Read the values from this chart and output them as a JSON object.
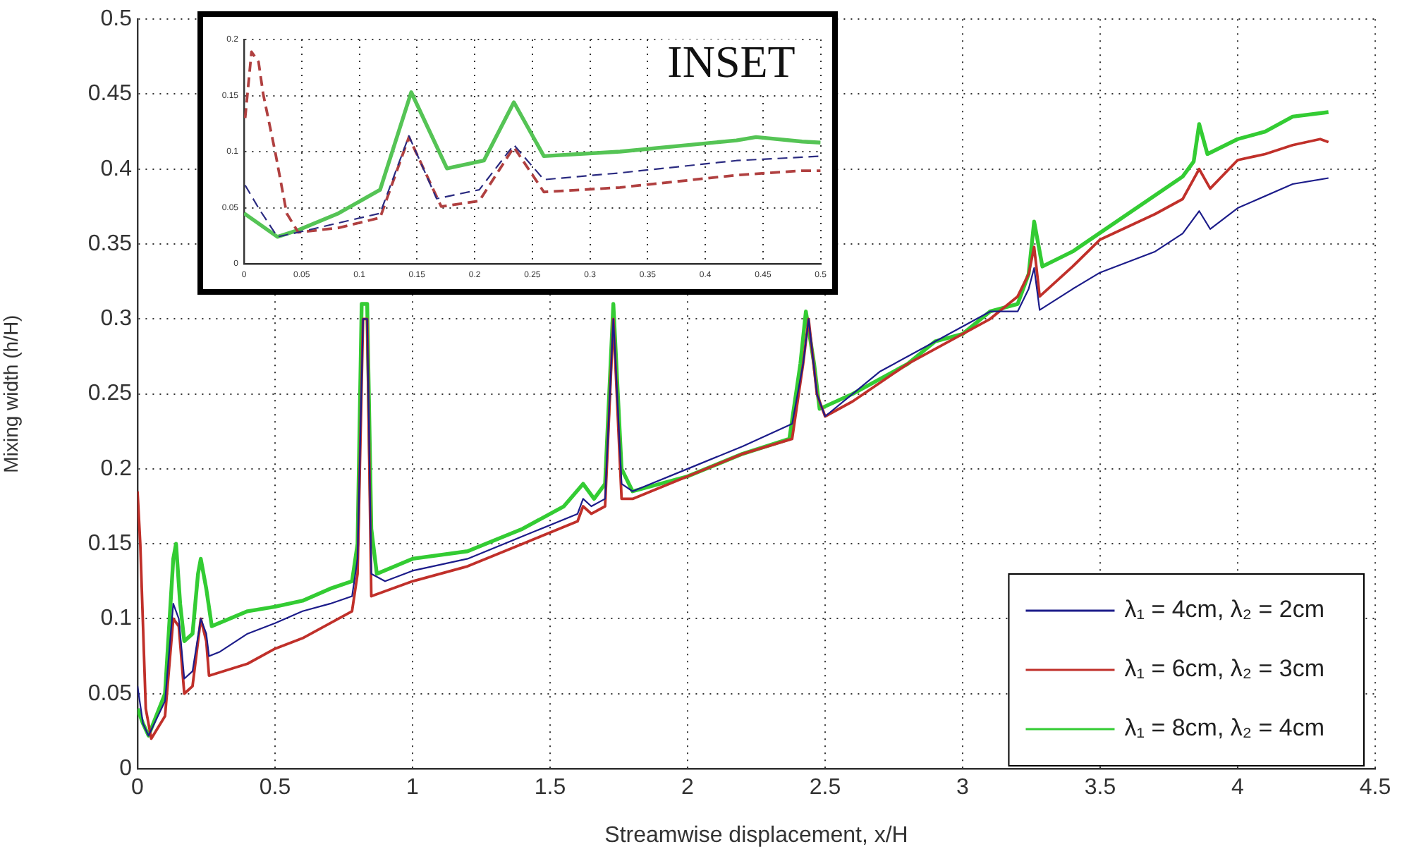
{
  "chart_data": [
    {
      "type": "line",
      "xlabel": "Streamwise displacement, x/H",
      "ylabel": "Mixing width (h/H)",
      "xlim": [
        0,
        4.5
      ],
      "xticks": [
        0,
        0.5,
        1,
        1.5,
        2,
        2.5,
        3,
        3.5,
        4,
        4.5
      ],
      "ylim": [
        0,
        0.5
      ],
      "yticks": [
        0,
        0.05,
        0.1,
        0.15,
        0.2,
        0.25,
        0.3,
        0.35,
        0.4,
        0.45,
        0.5
      ],
      "grid": true,
      "legend": "bottom right",
      "series": [
        {
          "name": "λ₁ = 4cm, λ₂ = 2cm",
          "color": "#1c1c8a",
          "x": [
            0,
            0.02,
            0.04,
            0.1,
            0.13,
            0.15,
            0.17,
            0.2,
            0.23,
            0.25,
            0.26,
            0.3,
            0.4,
            0.5,
            0.6,
            0.7,
            0.78,
            0.8,
            0.82,
            0.835,
            0.85,
            0.9,
            1.0,
            1.2,
            1.4,
            1.6,
            1.62,
            1.65,
            1.7,
            1.73,
            1.76,
            1.8,
            2.0,
            2.2,
            2.38,
            2.42,
            2.44,
            2.47,
            2.5,
            2.6,
            2.7,
            2.8,
            2.9,
            3.0,
            3.1,
            3.2,
            3.24,
            3.26,
            3.28,
            3.4,
            3.5,
            3.7,
            3.8,
            3.86,
            3.9,
            4.0,
            4.2,
            4.33
          ],
          "values": [
            0.055,
            0.03,
            0.022,
            0.045,
            0.11,
            0.1,
            0.06,
            0.065,
            0.1,
            0.09,
            0.075,
            0.078,
            0.09,
            0.097,
            0.105,
            0.11,
            0.115,
            0.14,
            0.3,
            0.3,
            0.13,
            0.125,
            0.132,
            0.14,
            0.155,
            0.17,
            0.18,
            0.175,
            0.18,
            0.3,
            0.19,
            0.185,
            0.2,
            0.215,
            0.23,
            0.27,
            0.3,
            0.25,
            0.235,
            0.25,
            0.265,
            0.275,
            0.285,
            0.295,
            0.305,
            0.305,
            0.32,
            0.334,
            0.306,
            0.32,
            0.331,
            0.345,
            0.357,
            0.372,
            0.36,
            0.374,
            0.39,
            0.394
          ]
        },
        {
          "name": "λ₁ = 6cm, λ₂ = 3cm",
          "color": "#c0302a",
          "x": [
            0,
            0.01,
            0.03,
            0.05,
            0.1,
            0.13,
            0.15,
            0.17,
            0.2,
            0.23,
            0.25,
            0.26,
            0.4,
            0.5,
            0.6,
            0.7,
            0.78,
            0.8,
            0.82,
            0.835,
            0.85,
            1.0,
            1.2,
            1.4,
            1.6,
            1.62,
            1.65,
            1.7,
            1.73,
            1.76,
            1.8,
            2.0,
            2.2,
            2.38,
            2.42,
            2.44,
            2.47,
            2.5,
            2.6,
            2.8,
            2.9,
            3.0,
            3.1,
            3.2,
            3.24,
            3.26,
            3.28,
            3.4,
            3.5,
            3.7,
            3.8,
            3.86,
            3.9,
            4.0,
            4.1,
            4.2,
            4.3,
            4.33
          ],
          "values": [
            0.185,
            0.15,
            0.04,
            0.02,
            0.035,
            0.1,
            0.095,
            0.05,
            0.055,
            0.1,
            0.085,
            0.062,
            0.07,
            0.08,
            0.087,
            0.097,
            0.105,
            0.13,
            0.3,
            0.3,
            0.115,
            0.125,
            0.135,
            0.15,
            0.165,
            0.175,
            0.17,
            0.175,
            0.3,
            0.18,
            0.18,
            0.195,
            0.21,
            0.22,
            0.27,
            0.3,
            0.25,
            0.235,
            0.245,
            0.27,
            0.28,
            0.29,
            0.3,
            0.315,
            0.33,
            0.348,
            0.315,
            0.335,
            0.353,
            0.37,
            0.38,
            0.4,
            0.387,
            0.406,
            0.41,
            0.416,
            0.42,
            0.418
          ]
        },
        {
          "name": "λ₁ = 8cm, λ₂ = 4cm",
          "color": "#33cc33",
          "x": [
            0,
            0.02,
            0.04,
            0.1,
            0.13,
            0.14,
            0.155,
            0.17,
            0.2,
            0.22,
            0.23,
            0.25,
            0.27,
            0.4,
            0.5,
            0.6,
            0.7,
            0.78,
            0.8,
            0.815,
            0.835,
            0.85,
            0.87,
            1.0,
            1.2,
            1.4,
            1.55,
            1.62,
            1.66,
            1.7,
            1.73,
            1.76,
            1.8,
            2.0,
            2.2,
            2.37,
            2.41,
            2.43,
            2.46,
            2.48,
            2.6,
            2.8,
            2.9,
            3.0,
            3.1,
            3.2,
            3.24,
            3.26,
            3.29,
            3.4,
            3.6,
            3.8,
            3.84,
            3.86,
            3.89,
            4.0,
            4.1,
            4.2,
            4.33
          ],
          "values": [
            0.04,
            0.03,
            0.022,
            0.05,
            0.14,
            0.15,
            0.11,
            0.085,
            0.09,
            0.13,
            0.14,
            0.12,
            0.095,
            0.105,
            0.108,
            0.112,
            0.12,
            0.125,
            0.15,
            0.31,
            0.31,
            0.16,
            0.13,
            0.14,
            0.145,
            0.16,
            0.175,
            0.19,
            0.18,
            0.19,
            0.31,
            0.2,
            0.185,
            0.195,
            0.21,
            0.22,
            0.27,
            0.305,
            0.27,
            0.24,
            0.25,
            0.27,
            0.285,
            0.29,
            0.305,
            0.31,
            0.33,
            0.365,
            0.335,
            0.345,
            0.37,
            0.395,
            0.405,
            0.43,
            0.41,
            0.42,
            0.425,
            0.435,
            0.438
          ]
        }
      ]
    },
    {
      "type": "line",
      "annotations": [
        "INSET"
      ],
      "xlim": [
        0,
        0.5
      ],
      "xticks": [
        0,
        0.05,
        0.1,
        0.15,
        0.2,
        0.25,
        0.3,
        0.35,
        0.4,
        0.45,
        0.5
      ],
      "ylim": [
        0,
        0.2
      ],
      "yticks": [
        0,
        0.05,
        0.1,
        0.15,
        0.2
      ],
      "grid": true,
      "series": [
        {
          "color": "#2a2a80",
          "line_style": "dashed",
          "x": [
            0.001,
            0.013,
            0.029,
            0.047,
            0.118,
            0.143,
            0.167,
            0.204,
            0.234,
            0.26,
            0.326,
            0.427,
            0.484,
            0.5
          ],
          "values": [
            0.07,
            0.049,
            0.024,
            0.028,
            0.045,
            0.114,
            0.058,
            0.066,
            0.106,
            0.075,
            0.081,
            0.092,
            0.095,
            0.096
          ]
        },
        {
          "color": "#b04040",
          "line_style": "dashed",
          "x": [
            0.001,
            0.0065,
            0.0126,
            0.0167,
            0.027,
            0.037,
            0.047,
            0.082,
            0.118,
            0.143,
            0.171,
            0.204,
            0.234,
            0.26,
            0.326,
            0.427,
            0.484,
            0.5
          ],
          "values": [
            0.13,
            0.189,
            0.18,
            0.151,
            0.1,
            0.045,
            0.028,
            0.032,
            0.041,
            0.113,
            0.051,
            0.056,
            0.104,
            0.064,
            0.068,
            0.079,
            0.083,
            0.083
          ]
        },
        {
          "color": "#55c455",
          "x": [
            0,
            0.029,
            0.047,
            0.082,
            0.118,
            0.145,
            0.176,
            0.208,
            0.234,
            0.26,
            0.326,
            0.427,
            0.444,
            0.484,
            0.5
          ],
          "values": [
            0.045,
            0.024,
            0.03,
            0.045,
            0.066,
            0.153,
            0.085,
            0.092,
            0.144,
            0.096,
            0.1,
            0.11,
            0.113,
            0.109,
            0.108
          ]
        }
      ]
    }
  ]
}
